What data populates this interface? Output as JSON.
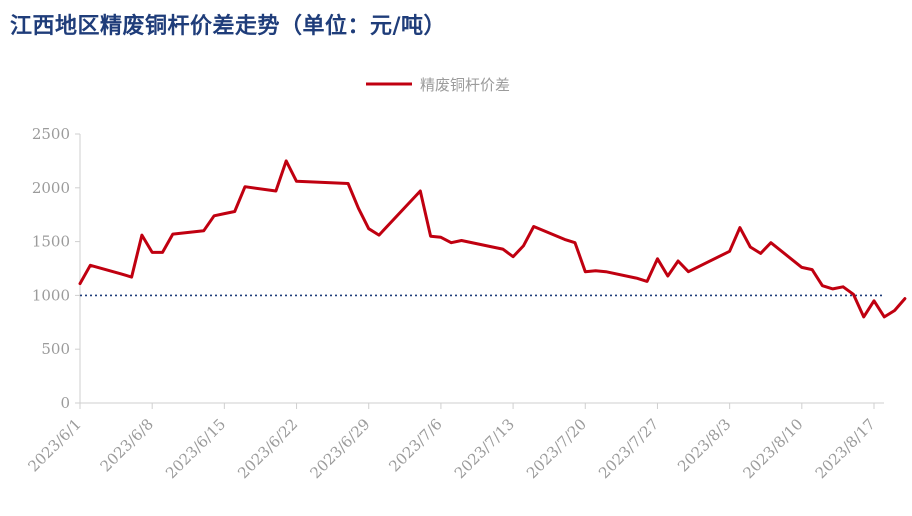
{
  "title": "江西地区精废铜杆价差走势（单位：元/吨）",
  "colors": {
    "series": "#c00010",
    "reference": "#1f3d7a",
    "axis": "#cfcfcf",
    "tick_text": "#9b9b9b",
    "title": "#1f3d7a"
  },
  "chart_data": {
    "type": "line",
    "title": "江西地区精废铜杆价差走势（单位：元/吨）",
    "xlabel": "",
    "ylabel": "",
    "ylim": [
      0,
      2500
    ],
    "yticks": [
      0,
      500,
      1000,
      1500,
      2000,
      2500
    ],
    "xlim": [
      "2023-06-01",
      "2023-08-18"
    ],
    "xtick_labels": [
      "2023/6/1",
      "2023/6/8",
      "2023/6/15",
      "2023/6/22",
      "2023/6/29",
      "2023/7/6",
      "2023/7/13",
      "2023/7/20",
      "2023/7/27",
      "2023/8/3",
      "2023/8/10",
      "2023/8/17"
    ],
    "xticks": [
      "2023-06-01",
      "2023-06-08",
      "2023-06-15",
      "2023-06-22",
      "2023-06-29",
      "2023-07-06",
      "2023-07-13",
      "2023-07-20",
      "2023-07-27",
      "2023-08-03",
      "2023-08-10",
      "2023-08-17"
    ],
    "grid": false,
    "legend_position": "top-center",
    "reference_line": {
      "y": 1000,
      "style": "dotted"
    },
    "series": [
      {
        "name": "精废铜杆价差",
        "points": [
          [
            "2023-06-01",
            1110
          ],
          [
            "2023-06-02",
            1280
          ],
          [
            "2023-06-05",
            1200
          ],
          [
            "2023-06-06",
            1170
          ],
          [
            "2023-06-07",
            1560
          ],
          [
            "2023-06-08",
            1400
          ],
          [
            "2023-06-09",
            1400
          ],
          [
            "2023-06-10",
            1570
          ],
          [
            "2023-06-13",
            1600
          ],
          [
            "2023-06-14",
            1740
          ],
          [
            "2023-06-15",
            1760
          ],
          [
            "2023-06-16",
            1780
          ],
          [
            "2023-06-17",
            2010
          ],
          [
            "2023-06-20",
            1970
          ],
          [
            "2023-06-21",
            2250
          ],
          [
            "2023-06-22",
            2060
          ],
          [
            "2023-06-27",
            2040
          ],
          [
            "2023-06-28",
            1810
          ],
          [
            "2023-06-29",
            1620
          ],
          [
            "2023-06-30",
            1560
          ],
          [
            "2023-07-04",
            1970
          ],
          [
            "2023-07-05",
            1550
          ],
          [
            "2023-07-06",
            1540
          ],
          [
            "2023-07-07",
            1490
          ],
          [
            "2023-07-08",
            1510
          ],
          [
            "2023-07-11",
            1450
          ],
          [
            "2023-07-12",
            1430
          ],
          [
            "2023-07-13",
            1360
          ],
          [
            "2023-07-14",
            1460
          ],
          [
            "2023-07-15",
            1640
          ],
          [
            "2023-07-18",
            1520
          ],
          [
            "2023-07-19",
            1490
          ],
          [
            "2023-07-20",
            1220
          ],
          [
            "2023-07-21",
            1230
          ],
          [
            "2023-07-22",
            1220
          ],
          [
            "2023-07-25",
            1160
          ],
          [
            "2023-07-26",
            1130
          ],
          [
            "2023-07-27",
            1340
          ],
          [
            "2023-07-28",
            1180
          ],
          [
            "2023-07-29",
            1320
          ],
          [
            "2023-07-30",
            1220
          ],
          [
            "2023-08-03",
            1410
          ],
          [
            "2023-08-04",
            1630
          ],
          [
            "2023-08-05",
            1450
          ],
          [
            "2023-08-06",
            1390
          ],
          [
            "2023-08-07",
            1490
          ],
          [
            "2023-08-10",
            1260
          ],
          [
            "2023-08-11",
            1240
          ],
          [
            "2023-08-12",
            1090
          ],
          [
            "2023-08-13",
            1060
          ],
          [
            "2023-08-14",
            1080
          ],
          [
            "2023-08-15",
            1010
          ],
          [
            "2023-08-16",
            800
          ],
          [
            "2023-08-17",
            950
          ],
          [
            "2023-08-18",
            800
          ],
          [
            "2023-08-19",
            860
          ],
          [
            "2023-08-20",
            970
          ]
        ]
      }
    ]
  }
}
